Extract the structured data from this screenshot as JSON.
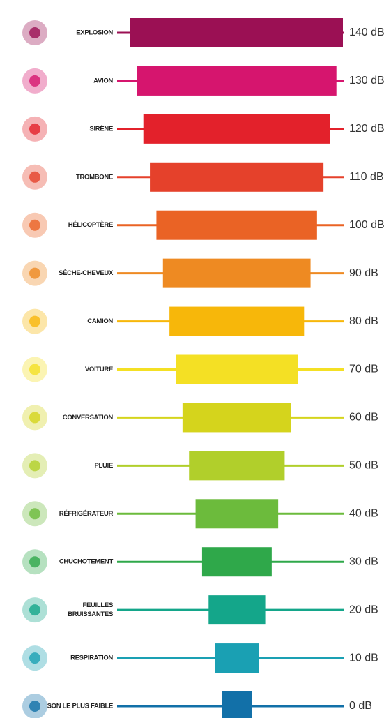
{
  "items": [
    {
      "label": [
        "EXPLOSION"
      ],
      "level": "140 dB",
      "color": "#9b1054"
    },
    {
      "label": [
        "AVION"
      ],
      "level": "130 dB",
      "color": "#d6156e"
    },
    {
      "label": [
        "SIRÈNE"
      ],
      "level": "120 dB",
      "color": "#e3212b"
    },
    {
      "label": [
        "TROMBONE"
      ],
      "level": "110 dB",
      "color": "#e5412b"
    },
    {
      "label": [
        "HÉLICOPTÈRE"
      ],
      "level": "100 dB",
      "color": "#ea6325"
    },
    {
      "label": [
        "SÈCHE-CHEVEUX"
      ],
      "level": "90 dB",
      "color": "#ee8a22"
    },
    {
      "label": [
        "CAMION"
      ],
      "level": "80 dB",
      "color": "#f7b70a"
    },
    {
      "label": [
        "VOITURE"
      ],
      "level": "70 dB",
      "color": "#f4e024"
    },
    {
      "label": [
        "CONVERSATION"
      ],
      "level": "60 dB",
      "color": "#d5d41c"
    },
    {
      "label": [
        "PLUIE"
      ],
      "level": "50 dB",
      "color": "#b1cf2b"
    },
    {
      "label": [
        "RÉFRIGÉRATEUR"
      ],
      "level": "40 dB",
      "color": "#6cbb3c"
    },
    {
      "label": [
        "CHUCHOTEMENT"
      ],
      "level": "30 dB",
      "color": "#2fa84a"
    },
    {
      "label": [
        "FEUILLES",
        "BRUISSANTES"
      ],
      "level": "20 dB",
      "color": "#14a68a"
    },
    {
      "label": [
        "RESPIRATION"
      ],
      "level": "10 dB",
      "color": "#1aa0b3"
    },
    {
      "label": [
        "SON LE PLUS FAIBLE"
      ],
      "level": "0 dB",
      "color": "#1270a8"
    }
  ]
}
